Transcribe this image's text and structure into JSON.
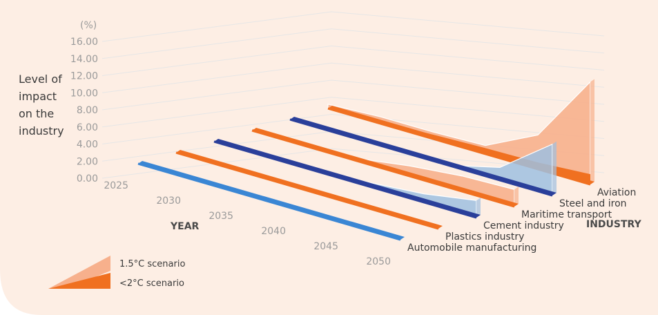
{
  "chart_data": {
    "type": "area",
    "unit_label": "(%)",
    "ylabel_lines": [
      "Level of",
      "impact",
      "on the",
      "industry"
    ],
    "xlabel": "YEAR",
    "zlabel": "INDUSTRY",
    "y_ticks": [
      "16.00",
      "14.00",
      "12.00",
      "10.00",
      "8.00",
      "6.00",
      "4.00",
      "2.00",
      "0.00"
    ],
    "ylim": [
      0,
      16
    ],
    "x": [
      "2025",
      "2030",
      "2035",
      "2040",
      "2045",
      "2050"
    ],
    "industries": [
      {
        "name": "Automobile manufacturing",
        "scenario_1_5": [
          0,
          0,
          0,
          0,
          0,
          0
        ],
        "scenario_2": [
          0,
          0,
          0,
          0,
          0,
          0
        ],
        "color": "#3a86d4"
      },
      {
        "name": "Plastics industry",
        "scenario_1_5": [
          0,
          0,
          0,
          0,
          0,
          0
        ],
        "scenario_2": [
          0,
          0,
          0,
          0,
          0,
          0
        ],
        "color": "#f07020"
      },
      {
        "name": "Cement industry",
        "scenario_1_5": [
          0,
          0,
          0,
          0.5,
          1.0,
          2.0
        ],
        "scenario_2": [
          0,
          0,
          0,
          0,
          0,
          0
        ],
        "color": "#9fbfe0"
      },
      {
        "name": "Maritime transport",
        "scenario_1_5": [
          0.3,
          0.3,
          0.3,
          1.2,
          1.8,
          2.0
        ],
        "scenario_2": [
          0,
          0,
          0,
          0,
          0,
          0
        ],
        "color": "#f7b08c"
      },
      {
        "name": "Steel and iron",
        "scenario_1_5": [
          0,
          0,
          0,
          0,
          1.5,
          6.0
        ],
        "scenario_2": [
          0,
          0,
          0,
          0,
          0,
          0
        ],
        "color": "#9fbfe0"
      },
      {
        "name": "Aviation",
        "scenario_1_5": [
          0.5,
          0.8,
          0.8,
          1.0,
          4.0,
          12.0
        ],
        "scenario_2": [
          0.1,
          0.2,
          0.5,
          0.7,
          0.8,
          1.2
        ],
        "color": "#f7b08c"
      }
    ],
    "legend": {
      "s15": "1.5°C scenario",
      "s2": "<2°C scenario"
    },
    "colors": {
      "s15_fill": "#f7b08c",
      "s2_fill": "#f07020",
      "blue_dark": "#2a3f9a",
      "blue_light": "#9fbfe0",
      "blue_edge": "#3a86d4",
      "background": "#fdeee4",
      "grid": "#e6e6e6"
    }
  }
}
